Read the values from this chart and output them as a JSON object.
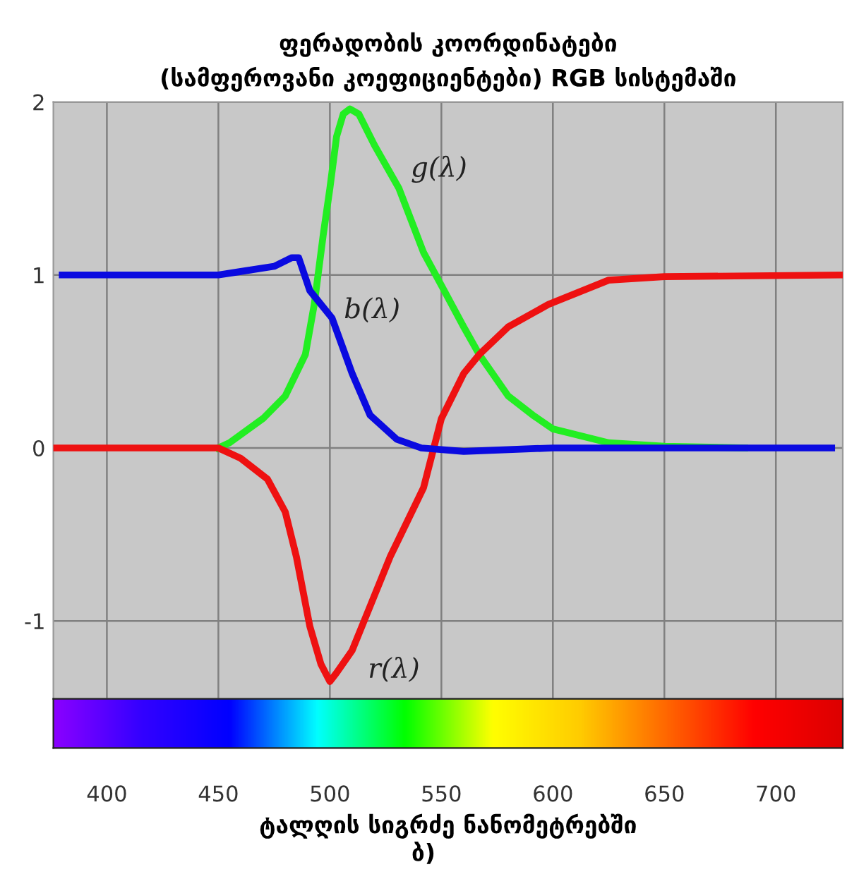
{
  "chart_data": {
    "type": "line",
    "title": "ფერადობის კოორდინატები\n(სამფეროვანი კოეფიციენტები) RGB სისტემაში",
    "xlabel": "ტალღის სიგრძე ნანომეტრებში",
    "annotations": [
      "ბ)"
    ],
    "xlim": [
      376,
      730
    ],
    "ylim": [
      -1.45,
      2.0
    ],
    "xticks": [
      400,
      450,
      500,
      550,
      600,
      650,
      700
    ],
    "yticks": [
      -1,
      0,
      1,
      2
    ],
    "grid": true,
    "legend": false,
    "line_style": "solid",
    "marker": "none",
    "series": [
      {
        "name": "g(λ)",
        "color": "#22ee22",
        "x": [
          450,
          455,
          470,
          480,
          489,
          493,
          497,
          500,
          503,
          506,
          509,
          513,
          520,
          531,
          542,
          550,
          560,
          567,
          580,
          591,
          600,
          625,
          650,
          686
        ],
        "values": [
          0,
          0.03,
          0.17,
          0.3,
          0.54,
          0.83,
          1.23,
          1.5,
          1.8,
          1.93,
          1.96,
          1.93,
          1.75,
          1.5,
          1.13,
          0.94,
          0.7,
          0.54,
          0.3,
          0.19,
          0.11,
          0.03,
          0.01,
          0
        ]
      },
      {
        "name": "b(λ)",
        "color": "#0a0ae0",
        "x": [
          380,
          450,
          460,
          475,
          483,
          486,
          491,
          501,
          510,
          518,
          530,
          541,
          560,
          600,
          725
        ],
        "values": [
          1.0,
          1.0,
          1.02,
          1.05,
          1.1,
          1.1,
          0.91,
          0.75,
          0.43,
          0.19,
          0.05,
          0.0,
          -0.02,
          0.0,
          0.0
        ]
      },
      {
        "name": "r(λ)",
        "color": "#ee1111",
        "x": [
          376,
          450,
          460,
          472,
          480,
          485,
          491,
          496,
          500,
          503,
          510,
          527,
          542,
          550,
          560,
          567,
          580,
          598,
          625,
          650,
          730
        ],
        "values": [
          0,
          0,
          -0.06,
          -0.18,
          -0.37,
          -0.63,
          -1.03,
          -1.25,
          -1.35,
          -1.3,
          -1.17,
          -0.63,
          -0.23,
          0.17,
          0.43,
          0.54,
          0.7,
          0.83,
          0.97,
          0.99,
          1.0
        ]
      }
    ]
  }
}
